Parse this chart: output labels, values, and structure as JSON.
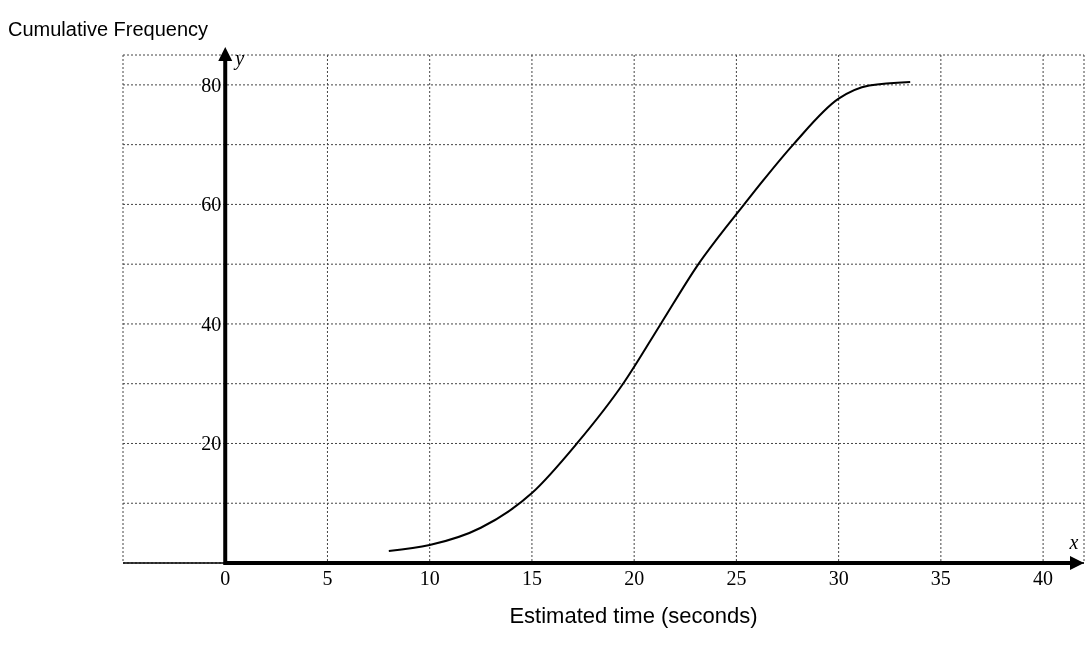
{
  "chart_data": {
    "type": "line",
    "ylabel": "Cumulative Frequency",
    "xlabel": "Estimated time (seconds)",
    "annotations": [
      "x",
      "y"
    ],
    "x": [
      8,
      10,
      12.5,
      15,
      17.2,
      19.5,
      21.3,
      23.1,
      25.4,
      27.8,
      30,
      31.5,
      33.5
    ],
    "series": [
      {
        "color": "#000000",
        "values": [
          2,
          3,
          5.9,
          11.7,
          20,
          30.2,
          40,
          49.8,
          60.1,
          70.1,
          77.7,
          79.9,
          80.5
        ]
      }
    ],
    "xlim": [
      -5,
      42
    ],
    "xticks": [
      0,
      5,
      10,
      15,
      20,
      25,
      30,
      35,
      40
    ],
    "ylim": [
      0,
      85
    ],
    "yticks": [
      {
        "value": 10,
        "label": null
      },
      20,
      {
        "value": 30,
        "label": null
      },
      40,
      {
        "value": 50,
        "label": null
      },
      60,
      {
        "value": 70,
        "label": null
      },
      80
    ],
    "grid": true
  }
}
